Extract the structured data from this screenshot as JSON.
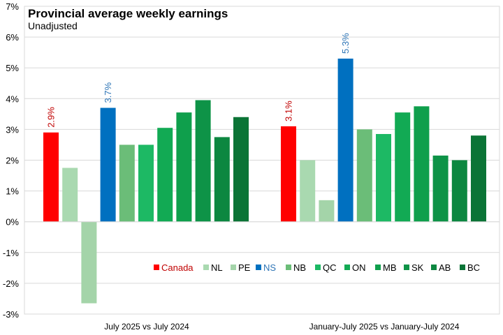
{
  "chart_data": {
    "type": "bar",
    "title": "Provincial average weekly earnings",
    "subtitle": "Unadjusted",
    "xlabel": "",
    "ylabel": "",
    "ylim": [
      -3,
      7
    ],
    "yticks": [
      -3,
      -2,
      -1,
      0,
      1,
      2,
      3,
      4,
      5,
      6,
      7
    ],
    "ytick_labels": [
      "-3%",
      "-2%",
      "-1%",
      "0%",
      "1%",
      "2%",
      "3%",
      "4%",
      "5%",
      "6%",
      "7%"
    ],
    "grid": true,
    "legend_position": "lower-right",
    "categories": [
      "July 2025 vs July 2024",
      "January-July 2025 vs January-July 2024"
    ],
    "series": [
      {
        "name": "Canada",
        "color": "#ff0000",
        "values": [
          2.9,
          3.1
        ],
        "labels": [
          "2.9%",
          "3.1%"
        ],
        "label_color": "#c00000"
      },
      {
        "name": "NL",
        "color": "#a9d9b0",
        "values": [
          1.75,
          2.0
        ]
      },
      {
        "name": "PE",
        "color": "#a4d4a9",
        "values": [
          -2.65,
          0.7
        ]
      },
      {
        "name": "NS",
        "color": "#0070c0",
        "values": [
          3.7,
          5.3
        ],
        "labels": [
          "3.7%",
          "5.3%"
        ],
        "label_color": "#2e75b6"
      },
      {
        "name": "NB",
        "color": "#6bbd78",
        "values": [
          2.5,
          3.0
        ]
      },
      {
        "name": "QC",
        "color": "#1db964",
        "values": [
          2.5,
          2.85
        ]
      },
      {
        "name": "ON",
        "color": "#12aa54",
        "values": [
          3.05,
          3.55
        ]
      },
      {
        "name": "MB",
        "color": "#0f9f4c",
        "values": [
          3.55,
          3.75
        ]
      },
      {
        "name": "SK",
        "color": "#0e9347",
        "values": [
          3.95,
          2.15
        ]
      },
      {
        "name": "AB",
        "color": "#0c8740",
        "values": [
          2.75,
          2.0
        ]
      },
      {
        "name": "BC",
        "color": "#0b7436",
        "values": [
          3.4,
          2.8
        ]
      }
    ]
  }
}
